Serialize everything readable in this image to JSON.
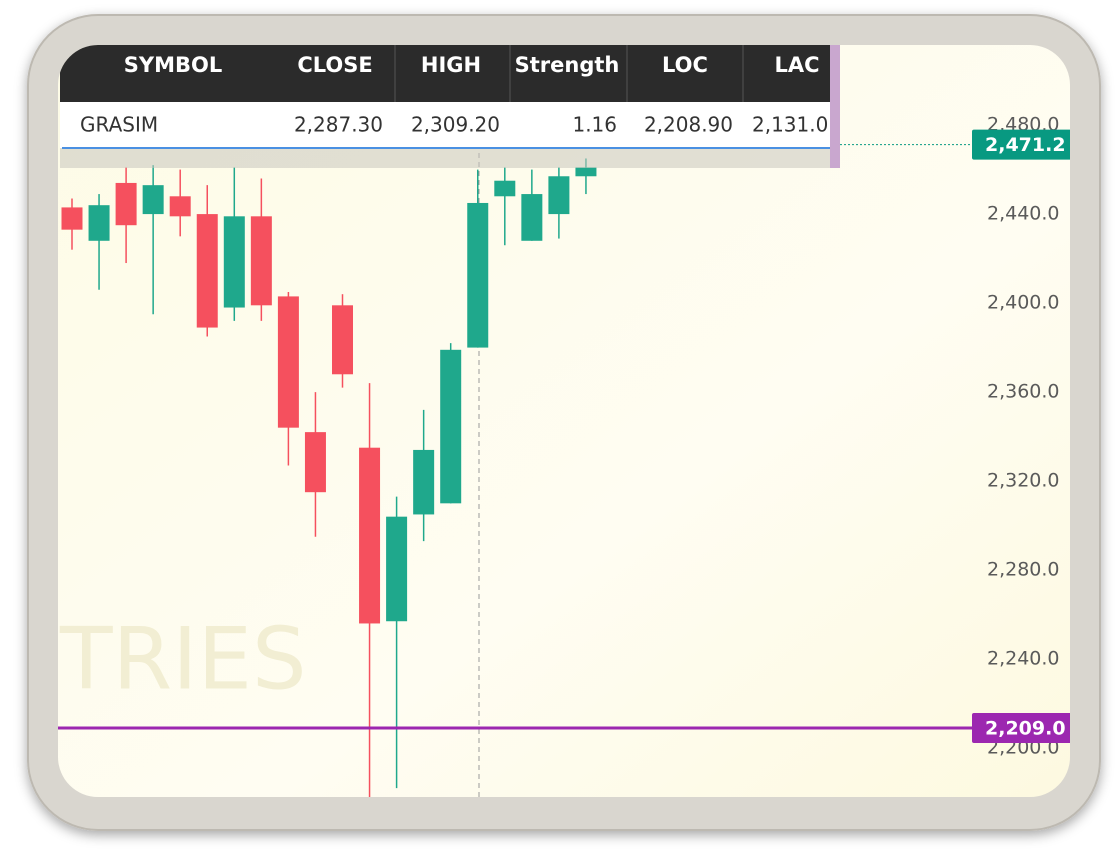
{
  "table": {
    "columns": [
      "SYMBOL",
      "CLOSE",
      "HIGH",
      "Strength",
      "LOC",
      "LAC"
    ],
    "rows": [
      [
        "GRASIM",
        "2,287.30",
        "2,309.20",
        "1.16",
        "2,208.90",
        "2,131.0"
      ]
    ]
  },
  "chart_data": {
    "type": "candlestick",
    "watermark": "TRIES",
    "ylim": [
      2178,
      2516
    ],
    "yticks": [
      {
        "value": 2480,
        "label": "2,480.0"
      },
      {
        "value": 2440,
        "label": "2,440.0"
      },
      {
        "value": 2400,
        "label": "2,400.0"
      },
      {
        "value": 2360,
        "label": "2,360.0"
      },
      {
        "value": 2320,
        "label": "2,320.0"
      },
      {
        "value": 2280,
        "label": "2,280.0"
      },
      {
        "value": 2240,
        "label": "2,240.0"
      },
      {
        "value": 2200,
        "label": "2,200.0"
      }
    ],
    "grid": false,
    "up_color": "#1fa88c",
    "down_color": "#f5505e",
    "open": [
      2443,
      2428,
      2454,
      2440,
      2448,
      2440,
      2398,
      2439,
      2403,
      2342,
      2399,
      2335,
      2257,
      2305,
      2310,
      2380,
      2448,
      2428,
      2440,
      2457
    ],
    "high": [
      2447,
      2449,
      2461,
      2462,
      2460,
      2453,
      2461,
      2456,
      2405,
      2360,
      2404,
      2364,
      2313,
      2352,
      2382,
      2460,
      2461,
      2460,
      2461,
      2465
    ],
    "low": [
      2424,
      2406,
      2418,
      2395,
      2430,
      2385,
      2392,
      2392,
      2327,
      2295,
      2362,
      2178,
      2182,
      2293,
      2310,
      2380,
      2426,
      2428,
      2429,
      2449
    ],
    "close": [
      2433,
      2444,
      2435,
      2453,
      2439,
      2389,
      2439,
      2399,
      2344,
      2315,
      2368,
      2256,
      2304,
      2334,
      2379,
      2445,
      2455,
      2449,
      2457,
      2461
    ],
    "price_lines": [
      {
        "value": 2471.2,
        "label": "2,471.2",
        "color": "#089981"
      },
      {
        "value": 2209,
        "label": "2,209.0",
        "color": "#9c27b0"
      }
    ]
  }
}
